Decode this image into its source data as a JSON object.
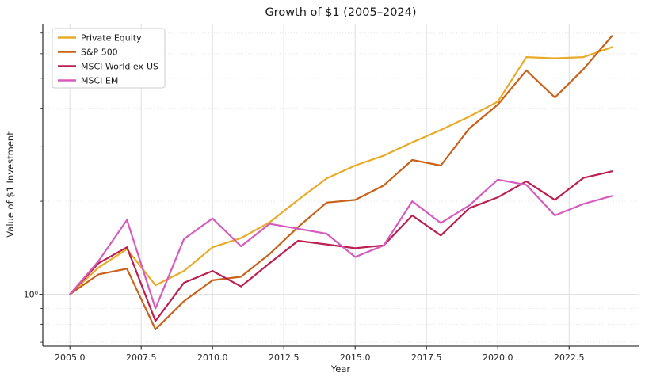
{
  "chart_data": {
    "type": "line",
    "title": "Growth of $1 (2005–2024)",
    "xlabel": "Year",
    "ylabel": "Value of $1 Investment",
    "y_scale": "log",
    "xlim": [
      2004.05,
      2024.95
    ],
    "ylim": [
      0.68,
      7.5
    ],
    "grid": true,
    "legend_position": "upper left",
    "x": [
      2005,
      2006,
      2007,
      2008,
      2009,
      2010,
      2011,
      2012,
      2013,
      2014,
      2015,
      2016,
      2017,
      2018,
      2019,
      2020,
      2021,
      2022,
      2023,
      2024
    ],
    "x_ticks": [
      2005.0,
      2007.5,
      2010.0,
      2012.5,
      2015.0,
      2017.5,
      2020.0,
      2022.5
    ],
    "x_tick_labels": [
      "2005.0",
      "2007.5",
      "2010.0",
      "2012.5",
      "2015.0",
      "2017.5",
      "2020.0",
      "2022.5"
    ],
    "y_tick_labels": [
      "10⁰"
    ],
    "y_major_gridlines": [
      1.0
    ],
    "y_minor_gridlines": [
      0.7,
      0.8,
      0.9,
      2,
      3,
      4,
      5,
      6,
      7
    ],
    "series": [
      {
        "name": "Private Equity",
        "color": "#e9ab27",
        "values": [
          1.0,
          1.22,
          1.4,
          1.07,
          1.19,
          1.42,
          1.52,
          1.71,
          2.02,
          2.37,
          2.61,
          2.81,
          3.1,
          3.4,
          3.76,
          4.2,
          5.85,
          5.8,
          5.85,
          6.3
        ]
      },
      {
        "name": "S&P 500",
        "color": "#c8621a",
        "values": [
          1.0,
          1.16,
          1.21,
          0.77,
          0.95,
          1.11,
          1.14,
          1.35,
          1.65,
          1.98,
          2.02,
          2.25,
          2.72,
          2.61,
          3.44,
          4.11,
          5.3,
          4.33,
          5.35,
          6.85
        ]
      },
      {
        "name": "MSCI World ex-US",
        "color": "#bc2050",
        "values": [
          1.0,
          1.26,
          1.42,
          0.82,
          1.09,
          1.19,
          1.06,
          1.26,
          1.49,
          1.45,
          1.41,
          1.44,
          1.8,
          1.55,
          1.9,
          2.06,
          2.32,
          2.02,
          2.38,
          2.5
        ]
      },
      {
        "name": "MSCI EM",
        "color": "#d55cbe",
        "values": [
          1.0,
          1.28,
          1.74,
          0.9,
          1.51,
          1.76,
          1.43,
          1.69,
          1.63,
          1.57,
          1.32,
          1.44,
          2.0,
          1.7,
          1.94,
          2.35,
          2.26,
          1.8,
          1.96,
          2.08
        ]
      }
    ],
    "colors": {
      "spine": "#3a3a3a",
      "major_grid": "#dedede",
      "minor_grid": "#dcdcdc",
      "legend_border": "#cccccc"
    }
  }
}
